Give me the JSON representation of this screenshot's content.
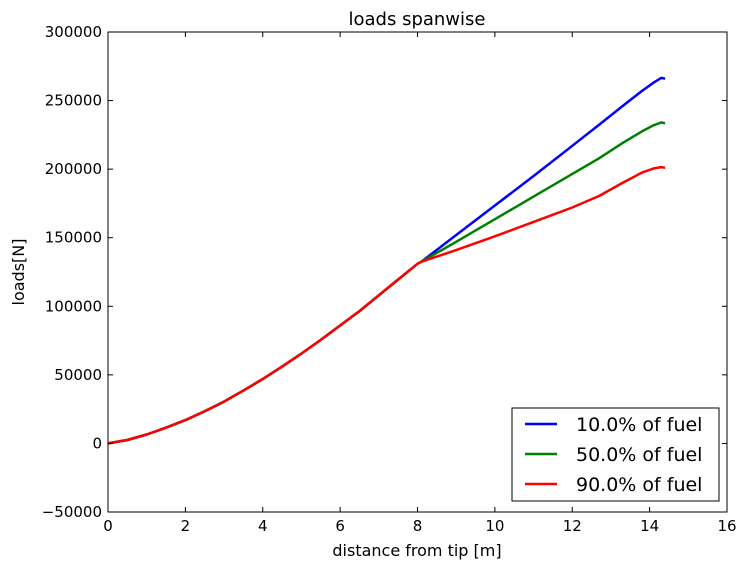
{
  "chart_data": {
    "type": "line",
    "title": "loads spanwise",
    "xlabel": "distance from tip [m]",
    "ylabel": "loads[N]",
    "xlim": [
      0,
      16
    ],
    "ylim": [
      -50000,
      300000
    ],
    "xticks": [
      0,
      2,
      4,
      6,
      8,
      10,
      12,
      14,
      16
    ],
    "yticks": [
      -50000,
      0,
      50000,
      100000,
      150000,
      200000,
      250000,
      300000
    ],
    "xtick_labels": [
      "0",
      "2",
      "4",
      "6",
      "8",
      "10",
      "12",
      "14",
      "16"
    ],
    "ytick_labels": [
      "−50000",
      "0",
      "50000",
      "100000",
      "150000",
      "200000",
      "250000",
      "300000"
    ],
    "grid": false,
    "legend_position": "bottom-right",
    "series": [
      {
        "name": "10.0% of fuel",
        "color": "#0000ff",
        "x": [
          0,
          0.5,
          1,
          1.5,
          2,
          2.5,
          3,
          3.5,
          4,
          4.5,
          5,
          5.5,
          6,
          6.5,
          7,
          7.5,
          8,
          8.1,
          9,
          10,
          11,
          12,
          12.7,
          13.3,
          13.8,
          14.1,
          14.3,
          14.4
        ],
        "y": [
          0,
          2500,
          6500,
          11500,
          17000,
          23500,
          30500,
          38500,
          47000,
          56000,
          65500,
          75500,
          86000,
          96500,
          108000,
          119500,
          131000,
          132500,
          152000,
          173500,
          195000,
          217000,
          232500,
          246000,
          257000,
          263000,
          266500,
          266000
        ]
      },
      {
        "name": "50.0% of fuel",
        "color": "#008000",
        "x": [
          0,
          0.5,
          1,
          1.5,
          2,
          2.5,
          3,
          3.5,
          4,
          4.5,
          5,
          5.5,
          6,
          6.5,
          7,
          7.5,
          8,
          8.1,
          9,
          10,
          11,
          12,
          12.7,
          13.3,
          13.8,
          14.1,
          14.3,
          14.4
        ],
        "y": [
          0,
          2500,
          6500,
          11500,
          17000,
          23500,
          30500,
          38500,
          47000,
          56000,
          65500,
          75500,
          86000,
          96500,
          108000,
          119500,
          131000,
          132500,
          147000,
          163500,
          180000,
          196500,
          208000,
          219000,
          227500,
          232000,
          234000,
          233500
        ]
      },
      {
        "name": "90.0% of fuel",
        "color": "#ff0000",
        "x": [
          0,
          0.5,
          1,
          1.5,
          2,
          2.5,
          3,
          3.5,
          4,
          4.5,
          5,
          5.5,
          6,
          6.5,
          7,
          7.5,
          8,
          8.1,
          9,
          10,
          11,
          12,
          12.7,
          13.3,
          13.8,
          14.1,
          14.3,
          14.4
        ],
        "y": [
          0,
          2500,
          6500,
          11500,
          17000,
          23500,
          30500,
          38500,
          47000,
          56000,
          65500,
          75500,
          86000,
          96500,
          108000,
          119500,
          131000,
          132500,
          141000,
          151000,
          161500,
          172000,
          180500,
          190000,
          197500,
          200500,
          201500,
          201000
        ]
      }
    ]
  }
}
